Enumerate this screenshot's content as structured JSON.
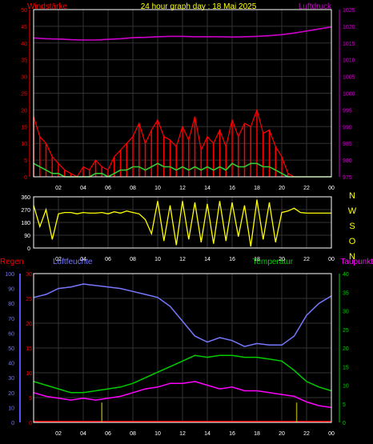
{
  "colors": {
    "background": "#000000",
    "frame": "#ffffff",
    "grid": "#333333",
    "windstaerke": "#ff0000",
    "luftdruck": "#cc00cc",
    "boeen": "#ff0000",
    "mittelwind": "#33cc33",
    "windrichtung": "#ffff00",
    "richtung_axis": "#ffff00",
    "regen": "#ff0000",
    "regen_axis": "#5555ff",
    "luftfeuchte": "#7777ff",
    "temperatur": "#00cc00",
    "taupunkt": "#ff00ff",
    "regen_bar": "#999900"
  },
  "header": {
    "left_label": "Windstärke",
    "title": "24 hour graph day : 18 Mai 2025",
    "right_label": "Luftdruck"
  },
  "bottom_header": {
    "regen": "Regen",
    "luftfeuchte": "Luftfeuchte",
    "temperatur": "Temperatur",
    "taupunkt": "Taupunkt"
  },
  "chart_data": [
    {
      "type": "line",
      "x_ticks": [
        "02",
        "04",
        "06",
        "08",
        "10",
        "12",
        "14",
        "16",
        "18",
        "20",
        "22",
        "00"
      ],
      "xlim": [
        0,
        24
      ],
      "y_left": {
        "label": "Windstärke",
        "ticks": [
          "0",
          "5",
          "10",
          "15",
          "20",
          "25",
          "30",
          "35",
          "40",
          "45",
          "50"
        ],
        "ylim": [
          0,
          50
        ]
      },
      "y_right": {
        "label": "Luftdruck",
        "ticks": [
          "975",
          "980",
          "985",
          "990",
          "995",
          "1000",
          "1005",
          "1010",
          "1015",
          "1020",
          "1025"
        ],
        "ylim": [
          975,
          1025
        ]
      },
      "series": [
        {
          "axis": "right",
          "x": [
            0,
            1,
            2,
            3,
            4,
            5,
            6,
            7,
            8,
            9,
            10,
            11,
            12,
            13,
            14,
            15,
            16,
            17,
            18,
            19,
            20,
            21,
            22,
            23,
            24
          ],
          "values": [
            1016.5,
            1016.3,
            1016.2,
            1016.0,
            1015.9,
            1015.9,
            1016.1,
            1016.3,
            1016.6,
            1016.7,
            1016.9,
            1017.0,
            1017.0,
            1016.9,
            1016.9,
            1016.9,
            1016.8,
            1016.9,
            1017.0,
            1017.2,
            1017.5,
            1018.0,
            1018.6,
            1019.2,
            1019.8
          ]
        },
        {
          "axis": "left",
          "x": [
            0,
            0.5,
            1,
            1.5,
            2,
            2.5,
            3,
            3.5,
            4,
            4.5,
            5,
            5.5,
            6,
            6.5,
            7,
            7.5,
            8,
            8.5,
            9,
            9.5,
            10,
            10.5,
            11,
            11.5,
            12,
            12.5,
            13,
            13.5,
            14,
            14.5,
            15,
            15.5,
            16,
            16.5,
            17,
            17.5,
            18,
            18.5,
            19,
            19.5,
            20,
            20.5,
            21,
            21.5,
            22,
            22.5,
            23,
            23.5,
            24
          ],
          "values": [
            18,
            12,
            10,
            6,
            4,
            2,
            1,
            0,
            3,
            2,
            5,
            3,
            2,
            6,
            8,
            10,
            12,
            16,
            10,
            14,
            17,
            12,
            11,
            9,
            15,
            11,
            18,
            8,
            12,
            10,
            14,
            9,
            17,
            12,
            16,
            15,
            20,
            13,
            14,
            9,
            6,
            1,
            0,
            0,
            0,
            0,
            0,
            0,
            0
          ]
        },
        {
          "axis": "left",
          "x": [
            0,
            0.5,
            1,
            1.5,
            2,
            2.5,
            3,
            3.5,
            4,
            4.5,
            5,
            5.5,
            6,
            6.5,
            7,
            7.5,
            8,
            8.5,
            9,
            9.5,
            10,
            10.5,
            11,
            11.5,
            12,
            12.5,
            13,
            13.5,
            14,
            14.5,
            15,
            15.5,
            16,
            16.5,
            17,
            17.5,
            18,
            18.5,
            19,
            19.5,
            20,
            20.5,
            21,
            21.5,
            22,
            22.5,
            23,
            23.5,
            24
          ],
          "values": [
            4,
            3,
            2,
            1,
            1,
            0,
            0,
            0,
            0,
            0,
            1,
            1,
            0,
            1,
            2,
            2,
            3,
            3,
            2,
            3,
            4,
            3,
            3,
            2,
            3,
            2,
            3,
            2,
            3,
            2,
            3,
            2,
            4,
            3,
            3,
            4,
            4,
            3,
            3,
            2,
            1,
            0,
            0,
            0,
            0,
            0,
            0,
            0,
            0
          ]
        }
      ]
    },
    {
      "type": "line",
      "x_ticks": [
        "02",
        "04",
        "06",
        "08",
        "10",
        "12",
        "14",
        "16",
        "18",
        "20",
        "22",
        "00"
      ],
      "xlim": [
        0,
        24
      ],
      "y_left": {
        "ticks": [
          "0",
          "90",
          "180",
          "270",
          "360"
        ],
        "ylim": [
          0,
          360
        ]
      },
      "y_right": {
        "ticks": [
          "N",
          "W",
          "S",
          "O",
          "N"
        ]
      },
      "series": [
        {
          "x": [
            0,
            0.5,
            1,
            1.5,
            2,
            2.5,
            3,
            3.5,
            4,
            4.5,
            5,
            5.5,
            6,
            6.5,
            7,
            7.5,
            8,
            8.5,
            9,
            9.5,
            10,
            10.5,
            11,
            11.5,
            12,
            12.5,
            13,
            13.5,
            14,
            14.5,
            15,
            15.5,
            16,
            16.5,
            17,
            17.5,
            18,
            18.5,
            19,
            19.5,
            20,
            20.5,
            21,
            21.5,
            22,
            22.5,
            23,
            23.5,
            24
          ],
          "values": [
            300,
            150,
            270,
            60,
            240,
            250,
            250,
            240,
            250,
            245,
            245,
            250,
            240,
            255,
            245,
            260,
            250,
            240,
            200,
            100,
            330,
            50,
            300,
            20,
            330,
            60,
            320,
            40,
            310,
            30,
            330,
            50,
            320,
            80,
            300,
            10,
            340,
            60,
            320,
            40,
            250,
            260,
            280,
            250,
            245,
            245,
            245,
            245,
            245
          ]
        }
      ]
    },
    {
      "type": "line",
      "x_ticks": [
        "02",
        "04",
        "06",
        "08",
        "10",
        "12",
        "14",
        "16",
        "18",
        "20",
        "22",
        "00"
      ],
      "xlim": [
        0,
        24
      ],
      "y_left_regen": {
        "label": "Regen",
        "ticks": [
          "0",
          "5",
          "10",
          "15",
          "20",
          "25",
          "30"
        ],
        "ylim": [
          0,
          30
        ]
      },
      "y_left_feuchte": {
        "label": "Luftfeuchte",
        "ticks": [
          "0",
          "10",
          "20",
          "30",
          "40",
          "50",
          "60",
          "70",
          "80",
          "90",
          "100"
        ],
        "ylim": [
          0,
          100
        ]
      },
      "y_right": {
        "label": "Temperatur",
        "ticks": [
          "0",
          "5",
          "10",
          "15",
          "20",
          "25",
          "30",
          "35",
          "40"
        ],
        "ylim": [
          0,
          40
        ]
      },
      "series": [
        {
          "axis": "feuchte",
          "x": [
            0,
            1,
            2,
            3,
            4,
            5,
            6,
            7,
            8,
            9,
            10,
            11,
            12,
            13,
            14,
            15,
            16,
            17,
            18,
            19,
            20,
            21,
            22,
            23,
            24
          ],
          "values": [
            84,
            86,
            90,
            91,
            93,
            92,
            91,
            90,
            88,
            86,
            84,
            78,
            68,
            58,
            54,
            57,
            55,
            51,
            53,
            52,
            52,
            58,
            72,
            80,
            85
          ]
        },
        {
          "axis": "right",
          "x": [
            0,
            1,
            2,
            3,
            4,
            5,
            6,
            7,
            8,
            9,
            10,
            11,
            12,
            13,
            14,
            15,
            16,
            17,
            18,
            19,
            20,
            21,
            22,
            23,
            24
          ],
          "values": [
            11,
            10,
            9,
            8,
            8,
            8.5,
            9,
            9.5,
            10.5,
            12,
            13.5,
            15,
            16.5,
            18,
            17.5,
            18,
            18,
            17.5,
            17.5,
            17,
            16.5,
            14,
            11,
            9.5,
            8.5
          ]
        },
        {
          "axis": "right",
          "x": [
            0,
            1,
            2,
            3,
            4,
            5,
            6,
            7,
            8,
            9,
            10,
            11,
            12,
            13,
            14,
            15,
            16,
            17,
            18,
            19,
            20,
            21,
            22,
            23,
            24
          ],
          "values": [
            8,
            7,
            6.5,
            6,
            6.5,
            6,
            6.5,
            7,
            8,
            9,
            9.5,
            10.5,
            10.5,
            11,
            10,
            9,
            9.5,
            8.5,
            8.5,
            8,
            7.5,
            7,
            5.5,
            4.5,
            4
          ]
        },
        {
          "axis": "regen",
          "type": "bar",
          "x": [
            5.5,
            21.2
          ],
          "values": [
            1,
            1
          ]
        }
      ]
    }
  ]
}
